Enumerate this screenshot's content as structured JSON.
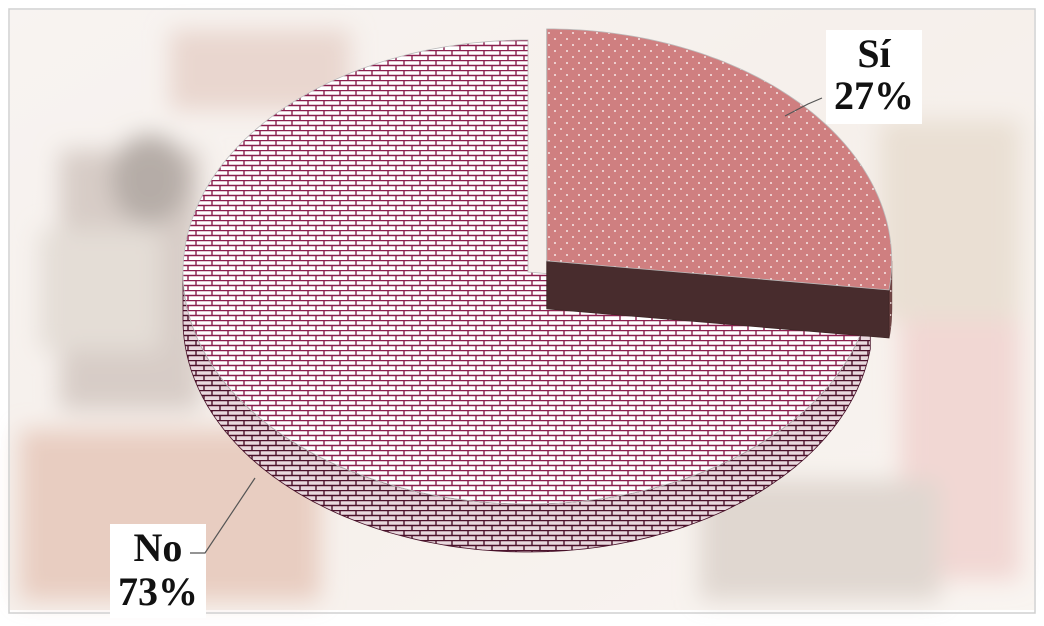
{
  "chart_data": {
    "type": "pie",
    "categories": [
      "Sí",
      "No"
    ],
    "values": [
      27,
      73
    ],
    "value_labels": [
      "27%",
      "73%"
    ],
    "colors": [
      "#cf7f80",
      "#8a1f4e"
    ],
    "explode": [
      true,
      false
    ]
  }
}
